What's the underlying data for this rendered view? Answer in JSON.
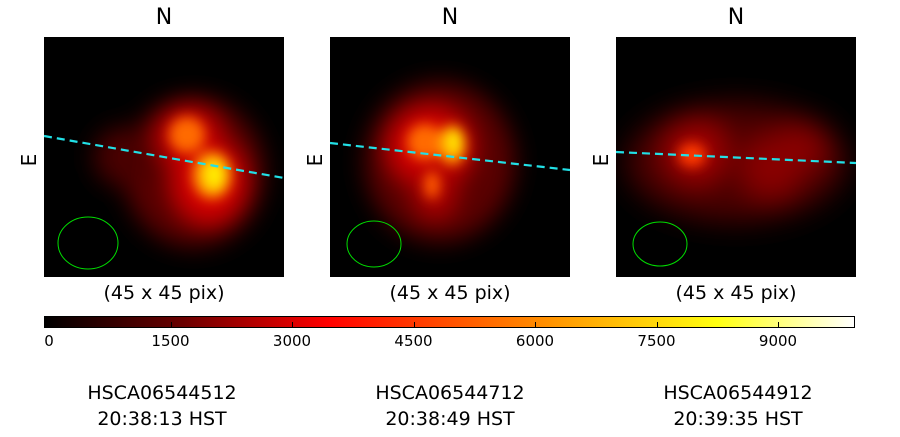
{
  "panels": [
    {
      "north_label": "N",
      "east_label": "E",
      "size_label": "(45 x 45 pix)",
      "id": "HSCA06544512",
      "time": "20:38:13 HST"
    },
    {
      "north_label": "N",
      "east_label": "E",
      "size_label": "(45 x 45 pix)",
      "id": "HSCA06544712",
      "time": "20:38:49 HST"
    },
    {
      "north_label": "N",
      "east_label": "E",
      "size_label": "(45 x 45 pix)",
      "id": "HSCA06544912",
      "time": "20:39:35 HST"
    }
  ],
  "colorbar": {
    "ticks": [
      "0",
      "1500",
      "3000",
      "4500",
      "6000",
      "7500",
      "9000"
    ],
    "colors": [
      "#000000",
      "#8b0000",
      "#ff0000",
      "#ff8c00",
      "#ffff00",
      "#ffffff"
    ]
  },
  "colors": {
    "slit_line": "#22e0e6",
    "seeing_ellipse": "#00dd00",
    "background": "#000000"
  }
}
